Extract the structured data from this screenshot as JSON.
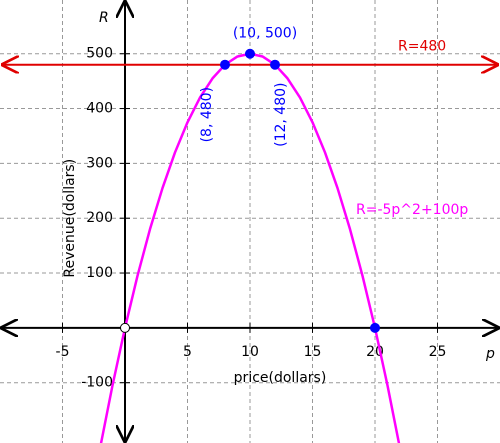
{
  "chart_data": {
    "type": "line",
    "x_label": "price(dollars)",
    "y_label": "Revenue(dollars)",
    "x_axis_name": "p",
    "y_axis_name": "R",
    "xlim": [
      -10,
      30
    ],
    "ylim": [
      -210,
      598
    ],
    "xticks": [
      -5,
      5,
      10,
      15,
      20,
      25
    ],
    "yticks": [
      -100,
      100,
      200,
      300,
      400,
      500
    ],
    "grid": true,
    "series": [
      {
        "name": "R=-5p^2+100p",
        "color": "#ff00ff",
        "x": [
          -2,
          -1,
          0,
          1,
          2,
          3,
          4,
          5,
          6,
          7,
          8,
          9,
          10,
          11,
          12,
          13,
          14,
          15,
          16,
          17,
          18,
          19,
          20,
          21,
          22
        ],
        "values": [
          -220,
          -105,
          0,
          95,
          180,
          255,
          320,
          375,
          420,
          455,
          480,
          495,
          500,
          495,
          480,
          455,
          420,
          375,
          320,
          255,
          180,
          95,
          0,
          -105,
          -220
        ]
      }
    ],
    "reference_line": {
      "label": "R=480",
      "value": 480,
      "color": "#e00000"
    },
    "points_color": "#0000ff",
    "points": [
      {
        "x": 10,
        "y": 500,
        "label": "(10, 500)"
      },
      {
        "x": 8,
        "y": 480,
        "label": "(8, 480)"
      },
      {
        "x": 12,
        "y": 480,
        "label": "(12, 480)"
      },
      {
        "x": 20,
        "y": 0
      },
      {
        "x": 0,
        "y": 0,
        "hollow": true
      }
    ]
  }
}
